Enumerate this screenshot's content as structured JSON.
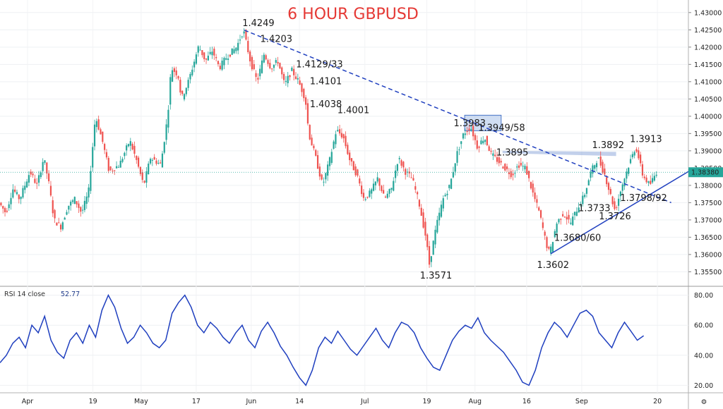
{
  "chart_data": {
    "type": "candlestick",
    "title": "6 HOUR GBPUSD",
    "price_axis": {
      "ticks": [
        "1.43000",
        "1.42500",
        "1.42000",
        "1.41500",
        "1.41000",
        "1.40500",
        "1.40000",
        "1.39500",
        "1.39000",
        "1.38500",
        "1.38000",
        "1.37500",
        "1.37000",
        "1.36500",
        "1.36000",
        "1.35500"
      ],
      "range": [
        1.351,
        1.432
      ]
    },
    "current_price": "1.38380",
    "time_axis": {
      "labels": [
        "Apr",
        "19",
        "May",
        "17",
        "Jun",
        "14",
        "Jul",
        "19",
        "Aug",
        "16",
        "Sep",
        "20"
      ],
      "positions": [
        0.04,
        0.135,
        0.205,
        0.285,
        0.365,
        0.435,
        0.53,
        0.62,
        0.69,
        0.765,
        0.845,
        0.955
      ]
    },
    "price_path": [
      [
        0.0,
        1.375
      ],
      [
        0.01,
        1.372
      ],
      [
        0.02,
        1.379
      ],
      [
        0.03,
        1.376
      ],
      [
        0.045,
        1.384
      ],
      [
        0.055,
        1.38
      ],
      [
        0.065,
        1.388
      ],
      [
        0.072,
        1.381
      ],
      [
        0.08,
        1.37
      ],
      [
        0.09,
        1.368
      ],
      [
        0.1,
        1.374
      ],
      [
        0.11,
        1.376
      ],
      [
        0.12,
        1.372
      ],
      [
        0.13,
        1.378
      ],
      [
        0.14,
        1.4001
      ],
      [
        0.15,
        1.393
      ],
      [
        0.16,
        1.384
      ],
      [
        0.175,
        1.386
      ],
      [
        0.19,
        1.393
      ],
      [
        0.2,
        1.387
      ],
      [
        0.21,
        1.38
      ],
      [
        0.22,
        1.388
      ],
      [
        0.235,
        1.386
      ],
      [
        0.245,
        1.4
      ],
      [
        0.25,
        1.414
      ],
      [
        0.26,
        1.412
      ],
      [
        0.265,
        1.405
      ],
      [
        0.275,
        1.41
      ],
      [
        0.29,
        1.4203
      ],
      [
        0.3,
        1.416
      ],
      [
        0.31,
        1.419
      ],
      [
        0.32,
        1.414
      ],
      [
        0.33,
        1.417
      ],
      [
        0.345,
        1.42
      ],
      [
        0.355,
        1.4249
      ],
      [
        0.365,
        1.416
      ],
      [
        0.375,
        1.41
      ],
      [
        0.385,
        1.418
      ],
      [
        0.395,
        1.414
      ],
      [
        0.405,
        1.416
      ],
      [
        0.415,
        1.409
      ],
      [
        0.425,
        1.4133
      ],
      [
        0.435,
        1.4101
      ],
      [
        0.445,
        1.405
      ],
      [
        0.45,
        1.395
      ],
      [
        0.46,
        1.388
      ],
      [
        0.47,
        1.38
      ],
      [
        0.48,
        1.387
      ],
      [
        0.49,
        1.396
      ],
      [
        0.5,
        1.394
      ],
      [
        0.51,
        1.387
      ],
      [
        0.52,
        1.383
      ],
      [
        0.53,
        1.376
      ],
      [
        0.54,
        1.378
      ],
      [
        0.55,
        1.382
      ],
      [
        0.56,
        1.376
      ],
      [
        0.57,
        1.379
      ],
      [
        0.58,
        1.388
      ],
      [
        0.59,
        1.384
      ],
      [
        0.6,
        1.382
      ],
      [
        0.61,
        1.375
      ],
      [
        0.62,
        1.365
      ],
      [
        0.625,
        1.3571
      ],
      [
        0.635,
        1.368
      ],
      [
        0.645,
        1.376
      ],
      [
        0.655,
        1.38
      ],
      [
        0.665,
        1.389
      ],
      [
        0.675,
        1.395
      ],
      [
        0.685,
        1.397
      ],
      [
        0.695,
        1.391
      ],
      [
        0.705,
        1.394
      ],
      [
        0.715,
        1.389
      ],
      [
        0.725,
        1.387
      ],
      [
        0.735,
        1.385
      ],
      [
        0.745,
        1.383
      ],
      [
        0.755,
        1.386
      ],
      [
        0.765,
        1.385
      ],
      [
        0.775,
        1.378
      ],
      [
        0.785,
        1.372
      ],
      [
        0.795,
        1.363
      ],
      [
        0.8,
        1.3602
      ],
      [
        0.81,
        1.369
      ],
      [
        0.82,
        1.372
      ],
      [
        0.83,
        1.369
      ],
      [
        0.84,
        1.3733
      ],
      [
        0.85,
        1.377
      ],
      [
        0.86,
        1.384
      ],
      [
        0.87,
        1.388
      ],
      [
        0.88,
        1.383
      ],
      [
        0.89,
        1.376
      ],
      [
        0.895,
        1.3726
      ],
      [
        0.905,
        1.38
      ],
      [
        0.915,
        1.386
      ],
      [
        0.925,
        1.3913
      ],
      [
        0.935,
        1.383
      ],
      [
        0.945,
        1.38
      ],
      [
        0.955,
        1.3838
      ]
    ],
    "annotations": [
      {
        "text": "1.4249",
        "x": 0.352,
        "price": 1.4249
      },
      {
        "text": "1.4203",
        "x": 0.378,
        "price": 1.4203
      },
      {
        "text": "1.4129/33",
        "x": 0.43,
        "price": 1.4133
      },
      {
        "text": "1.4101",
        "x": 0.45,
        "price": 1.4101
      },
      {
        "text": "1.4038",
        "x": 0.45,
        "price": 1.4038
      },
      {
        "text": "1.4001",
        "x": 0.49,
        "price": 1.4001
      },
      {
        "text": "1.3983",
        "x": 0.66,
        "price": 1.3983
      },
      {
        "text": "1.3949/58",
        "x": 0.71,
        "price": 1.3958
      },
      {
        "text": "1.3895",
        "x": 0.725,
        "price": 1.3895
      },
      {
        "text": "1.3892",
        "x": 0.86,
        "price": 1.3892
      },
      {
        "text": "1.3913",
        "x": 0.915,
        "price": 1.3913
      },
      {
        "text": "1.3798/92",
        "x": 0.905,
        "price": 1.3792
      },
      {
        "text": "1.3733",
        "x": 0.838,
        "price": 1.3733
      },
      {
        "text": "1.3726",
        "x": 0.87,
        "price": 1.3726
      },
      {
        "text": "1.3680/60",
        "x": 0.805,
        "price": 1.368
      },
      {
        "text": "1.3602",
        "x": 0.78,
        "price": 1.3602
      },
      {
        "text": "1.3571",
        "x": 0.61,
        "price": 1.3571
      }
    ],
    "trendlines": [
      {
        "style": "dashed",
        "from": [
          0.355,
          1.4249
        ],
        "to": [
          0.975,
          1.375
        ]
      },
      {
        "style": "solid",
        "from": [
          0.8,
          1.3602
        ],
        "to": [
          1.0,
          1.384
        ]
      }
    ],
    "rsi": {
      "label": "RSI 14 close",
      "value": "52.77",
      "ticks": [
        "80.00",
        "60.00",
        "40.00",
        "20.00"
      ],
      "range": [
        15,
        85
      ],
      "values": [
        35,
        40,
        48,
        52,
        45,
        60,
        55,
        66,
        50,
        42,
        38,
        50,
        55,
        48,
        60,
        52,
        70,
        80,
        72,
        58,
        48,
        52,
        60,
        55,
        48,
        45,
        50,
        68,
        75,
        80,
        72,
        60,
        55,
        62,
        58,
        52,
        48,
        55,
        60,
        50,
        45,
        56,
        62,
        55,
        46,
        40,
        32,
        25,
        20,
        30,
        45,
        52,
        48,
        56,
        50,
        44,
        40,
        46,
        52,
        58,
        50,
        45,
        55,
        62,
        60,
        55,
        45,
        38,
        32,
        30,
        40,
        50,
        56,
        60,
        58,
        65,
        55,
        50,
        46,
        42,
        36,
        30,
        22,
        20,
        30,
        45,
        55,
        62,
        58,
        52,
        60,
        68,
        70,
        66,
        55,
        50,
        45,
        55,
        62,
        56,
        50,
        53
      ]
    }
  }
}
